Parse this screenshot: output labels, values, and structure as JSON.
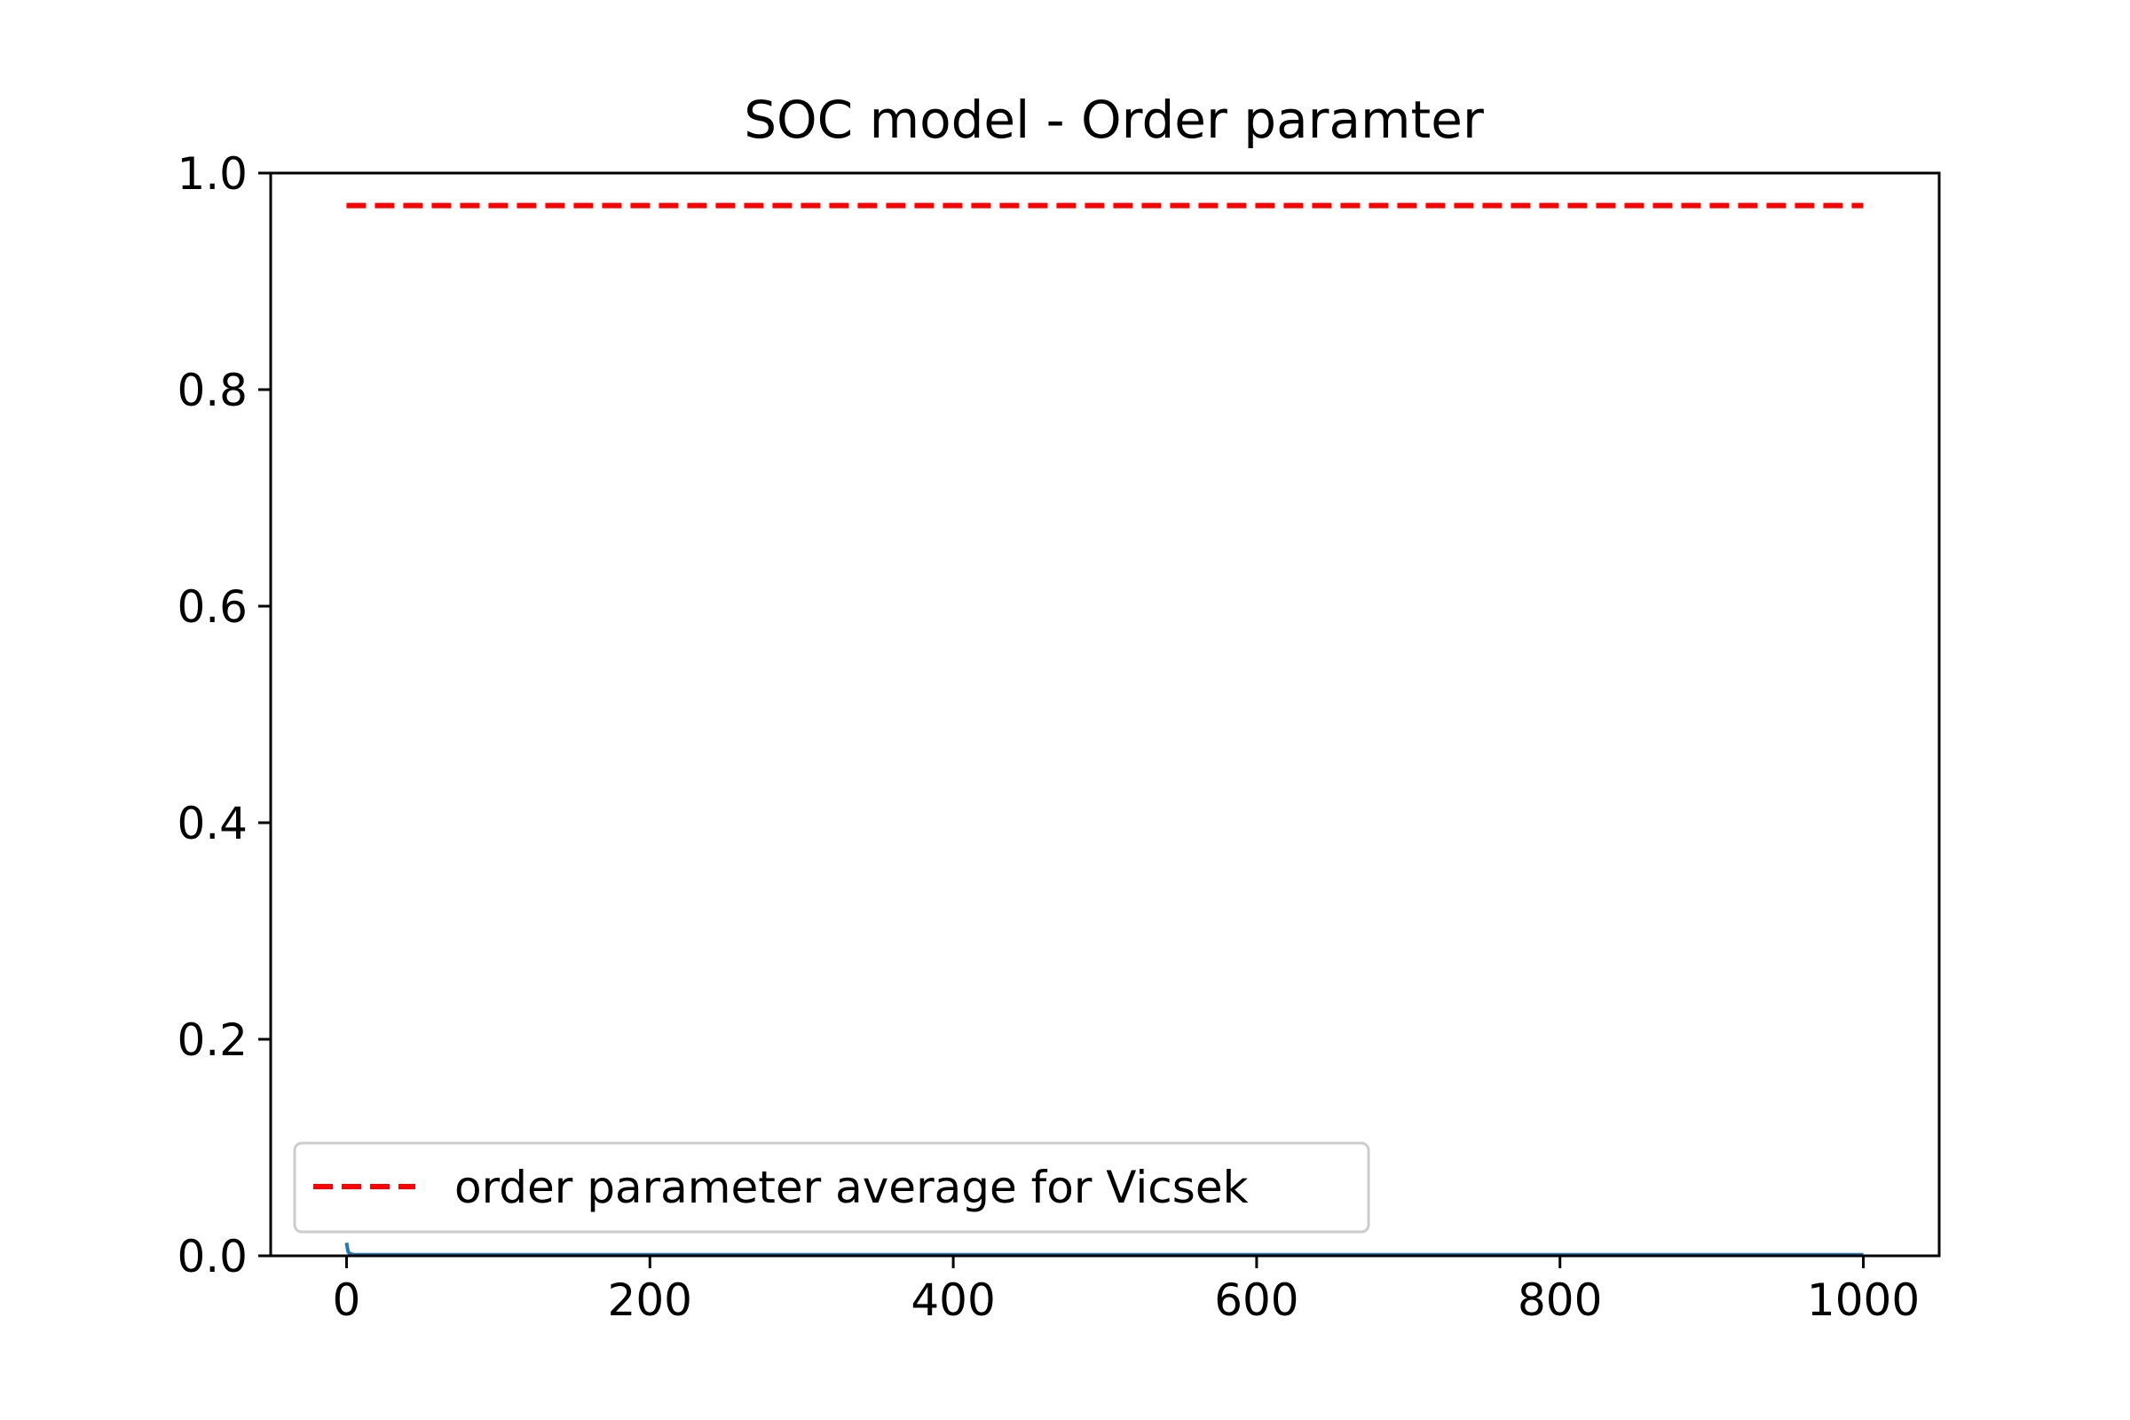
{
  "chart_data": {
    "type": "line",
    "title": "SOC model - Order paramter",
    "xlabel": "",
    "ylabel": "",
    "xlim": [
      -50,
      1050
    ],
    "ylim": [
      0.0,
      1.0
    ],
    "x_ticks": [
      0,
      200,
      400,
      600,
      800,
      1000
    ],
    "x_tick_labels": [
      "0",
      "200",
      "400",
      "600",
      "800",
      "1000"
    ],
    "y_ticks": [
      0.0,
      0.2,
      0.4,
      0.6,
      0.8,
      1.0
    ],
    "y_tick_labels": [
      "0.0",
      "0.2",
      "0.4",
      "0.6",
      "0.8",
      "1.0"
    ],
    "grid": false,
    "legend_position": "lower-left",
    "series": [
      {
        "style": "solid",
        "color": "#1f77b4",
        "x": [
          0,
          1,
          2,
          5,
          10,
          50,
          100,
          200,
          300,
          400,
          500,
          600,
          700,
          800,
          900,
          1000
        ],
        "y": [
          0.012,
          0.004,
          0.002,
          0.001,
          0.001,
          0.001,
          0.001,
          0.001,
          0.001,
          0.001,
          0.001,
          0.001,
          0.001,
          0.001,
          0.001,
          0.001
        ]
      },
      {
        "name": "order parameter average for Vicsek",
        "style": "dashed",
        "color": "#ff0000",
        "x": [
          0,
          1000
        ],
        "y": [
          0.97,
          0.97
        ]
      }
    ]
  }
}
